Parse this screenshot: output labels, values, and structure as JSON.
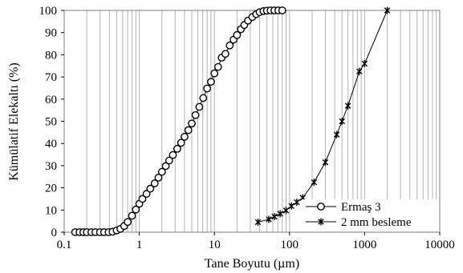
{
  "chart_data": {
    "type": "scatter",
    "xlabel": "Tane Boyutu (µm)",
    "ylabel": "Kümülatif Elekaltı (%)",
    "x_scale": "log",
    "xlim": [
      0.1,
      10000
    ],
    "ylim": [
      0,
      100
    ],
    "x_ticks": [
      "0.1",
      "1",
      "10",
      "100",
      "1000",
      "10000"
    ],
    "y_ticks": [
      "0",
      "10",
      "20",
      "30",
      "40",
      "50",
      "60",
      "70",
      "80",
      "90",
      "100"
    ],
    "grid": "vertical log gridlines",
    "legend_position": "bottom-right",
    "series": [
      {
        "name": "Ermaş 3",
        "marker": "open-circle",
        "color": "#000000",
        "points": [
          [
            0.14,
            0
          ],
          [
            0.16,
            0
          ],
          [
            0.18,
            0
          ],
          [
            0.2,
            0
          ],
          [
            0.23,
            0
          ],
          [
            0.26,
            0
          ],
          [
            0.3,
            0
          ],
          [
            0.34,
            0
          ],
          [
            0.39,
            0
          ],
          [
            0.44,
            0.2
          ],
          [
            0.5,
            0.8
          ],
          [
            0.56,
            1.5
          ],
          [
            0.63,
            2.8
          ],
          [
            0.7,
            4.6
          ],
          [
            0.8,
            7.4
          ],
          [
            0.9,
            10.2
          ],
          [
            1.0,
            12.8
          ],
          [
            1.1,
            15.0
          ],
          [
            1.25,
            17.3
          ],
          [
            1.4,
            19.6
          ],
          [
            1.6,
            22.0
          ],
          [
            1.8,
            24.6
          ],
          [
            2.0,
            27.2
          ],
          [
            2.25,
            29.8
          ],
          [
            2.5,
            32.3
          ],
          [
            2.8,
            34.8
          ],
          [
            3.2,
            37.6
          ],
          [
            3.6,
            40.3
          ],
          [
            4.0,
            43.0
          ],
          [
            4.5,
            46.0
          ],
          [
            5.0,
            49.0
          ],
          [
            5.6,
            52.8
          ],
          [
            6.3,
            56.5
          ],
          [
            7.1,
            60.5
          ],
          [
            8.0,
            64.8
          ],
          [
            9.0,
            67.8
          ],
          [
            10.0,
            71.6
          ],
          [
            11.2,
            74.5
          ],
          [
            12.5,
            78.7
          ],
          [
            14.0,
            80.4
          ],
          [
            16.0,
            84.2
          ],
          [
            18.0,
            86.8
          ],
          [
            20.0,
            88.9
          ],
          [
            22.5,
            91.5
          ],
          [
            25.0,
            93.4
          ],
          [
            28.0,
            95.4
          ],
          [
            32.0,
            97.0
          ],
          [
            36.0,
            98.3
          ],
          [
            40.0,
            99.2
          ],
          [
            45.0,
            99.7
          ],
          [
            50.0,
            99.9
          ],
          [
            56.0,
            100
          ],
          [
            63.0,
            100
          ],
          [
            71.0,
            100
          ],
          [
            80.0,
            100
          ]
        ]
      },
      {
        "name": "2 mm besleme",
        "marker": "asterisk",
        "color": "#000000",
        "points": [
          [
            38,
            4.5
          ],
          [
            53,
            5.8
          ],
          [
            63,
            7.0
          ],
          [
            75,
            8.3
          ],
          [
            90,
            9.8
          ],
          [
            106,
            11.8
          ],
          [
            125,
            13.5
          ],
          [
            150,
            15.5
          ],
          [
            212,
            22.5
          ],
          [
            300,
            31.5
          ],
          [
            425,
            44.0
          ],
          [
            500,
            50.0
          ],
          [
            600,
            57.0
          ],
          [
            850,
            72.5
          ],
          [
            1000,
            76.0
          ],
          [
            2000,
            100
          ]
        ]
      }
    ]
  }
}
